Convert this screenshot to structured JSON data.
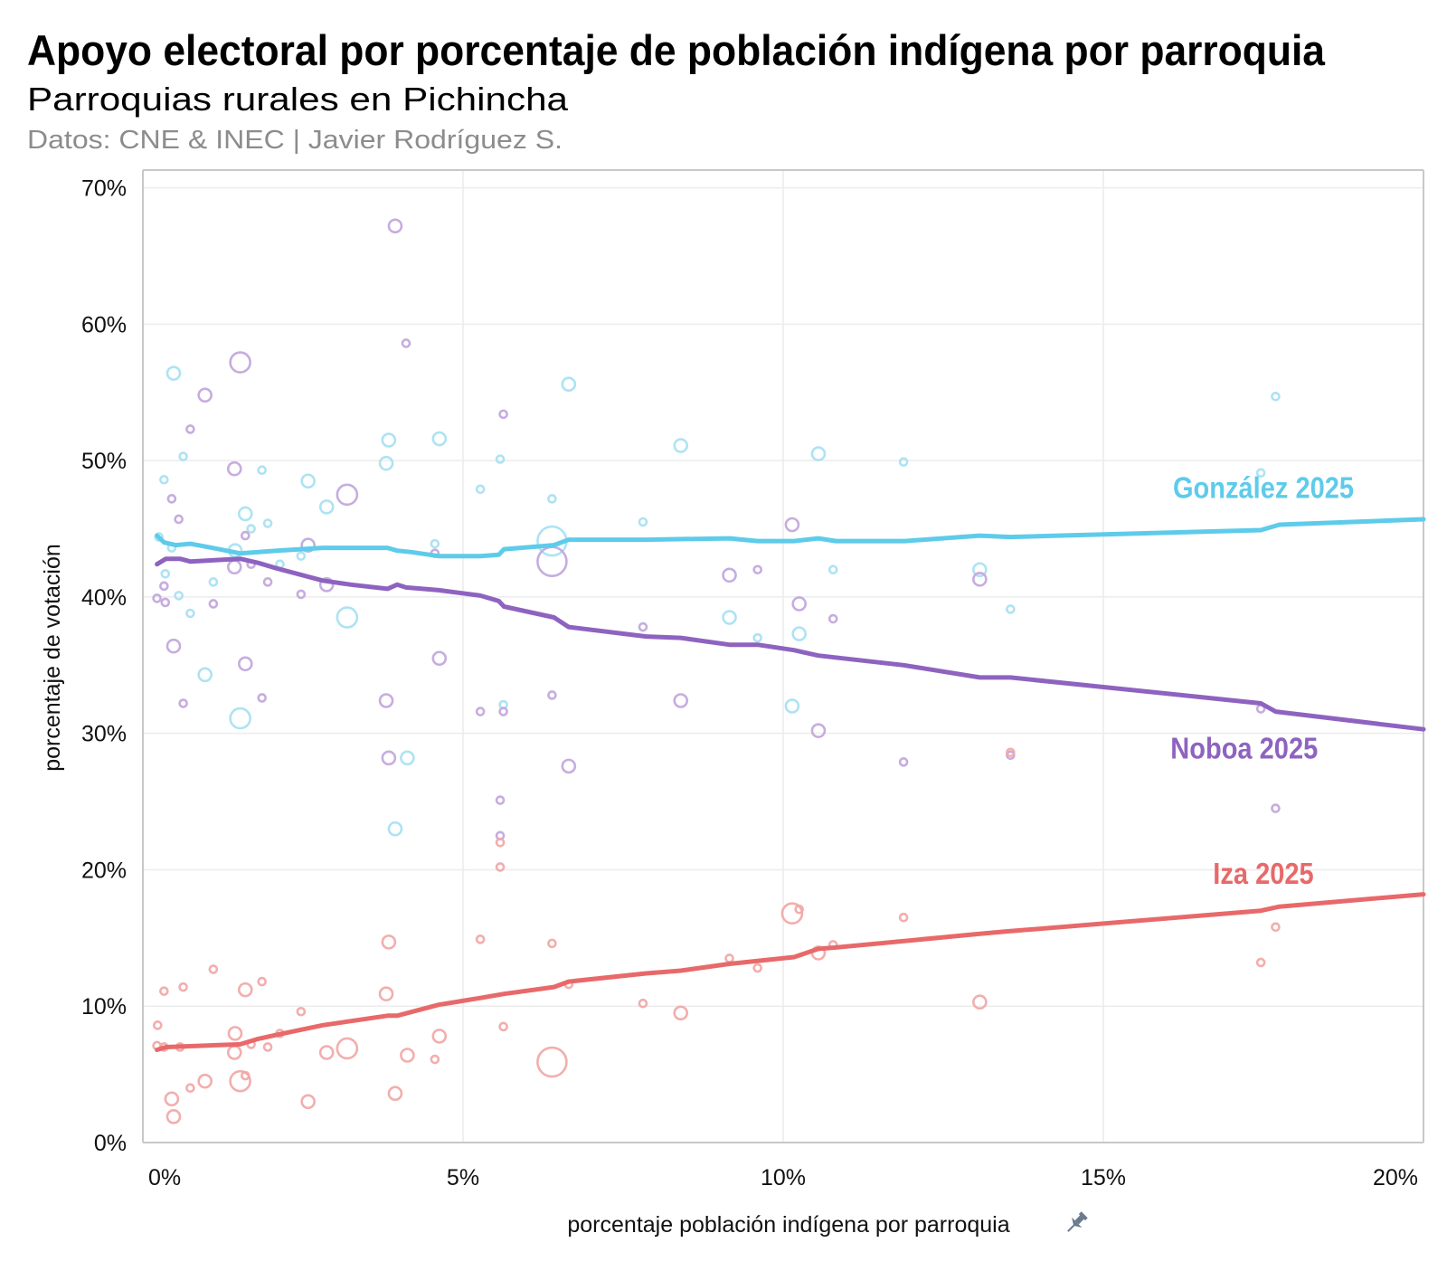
{
  "chart_data": {
    "type": "scatter",
    "title": "Apoyo electoral por porcentaje de población indígena por parroquia",
    "subtitle": "Parroquias rurales en Pichincha",
    "source": "Datos: CNE & INEC | Javier Rodríguez S.",
    "xlabel": "porcentaje población indígena por parroquia",
    "ylabel": "porcentaje de votación",
    "xlim": [
      0,
      20
    ],
    "ylim": [
      0,
      71.3
    ],
    "x_ticks": [
      {
        "v": 0,
        "label": "0%"
      },
      {
        "v": 5,
        "label": "5%"
      },
      {
        "v": 10,
        "label": "10%"
      },
      {
        "v": 15,
        "label": "15%"
      },
      {
        "v": 20,
        "label": "20%"
      }
    ],
    "y_ticks": [
      {
        "v": 0,
        "label": "0%"
      },
      {
        "v": 10,
        "label": "10%"
      },
      {
        "v": 20,
        "label": "20%"
      },
      {
        "v": 30,
        "label": "30%"
      },
      {
        "v": 40,
        "label": "40%"
      },
      {
        "v": 50,
        "label": "50%"
      },
      {
        "v": 60,
        "label": "60%"
      },
      {
        "v": 70,
        "label": "70%"
      }
    ],
    "grid": true,
    "point_size_note": "circle size = relative parish size (1-4)",
    "series": [
      {
        "name": "González 2025",
        "color": "#5ecbea",
        "point_color": "#a9e1f2",
        "label_at": [
          17.5,
          48.0
        ],
        "points": [
          [
            0.25,
            44.4,
            1
          ],
          [
            0.33,
            48.6,
            1
          ],
          [
            0.48,
            56.4,
            2
          ],
          [
            0.45,
            43.6,
            1
          ],
          [
            0.35,
            41.7,
            1
          ],
          [
            0.56,
            40.1,
            1
          ],
          [
            0.63,
            50.3,
            1
          ],
          [
            0.74,
            38.8,
            1
          ],
          [
            0.97,
            34.3,
            2
          ],
          [
            1.1,
            41.1,
            1
          ],
          [
            1.44,
            43.4,
            2
          ],
          [
            1.52,
            31.1,
            3
          ],
          [
            1.6,
            46.1,
            2
          ],
          [
            1.69,
            45.0,
            1
          ],
          [
            1.86,
            49.3,
            1
          ],
          [
            1.95,
            45.4,
            1
          ],
          [
            2.14,
            42.4,
            1
          ],
          [
            2.58,
            48.5,
            2
          ],
          [
            2.47,
            43.0,
            1
          ],
          [
            2.87,
            46.6,
            2
          ],
          [
            3.19,
            38.5,
            3
          ],
          [
            3.8,
            49.8,
            2
          ],
          [
            3.84,
            51.5,
            2
          ],
          [
            3.94,
            23.0,
            2
          ],
          [
            4.13,
            28.2,
            2
          ],
          [
            4.56,
            43.9,
            1
          ],
          [
            4.63,
            51.6,
            2
          ],
          [
            5.27,
            47.9,
            1
          ],
          [
            5.58,
            50.1,
            1
          ],
          [
            5.63,
            32.1,
            1
          ],
          [
            6.39,
            44.1,
            4
          ],
          [
            6.39,
            47.2,
            1
          ],
          [
            6.65,
            55.6,
            2
          ],
          [
            7.81,
            45.5,
            1
          ],
          [
            8.4,
            51.1,
            2
          ],
          [
            9.16,
            38.5,
            2
          ],
          [
            9.6,
            37.0,
            1
          ],
          [
            10.14,
            32.0,
            2
          ],
          [
            10.25,
            37.3,
            2
          ],
          [
            10.55,
            50.5,
            2
          ],
          [
            10.78,
            42.0,
            1
          ],
          [
            11.88,
            49.9,
            1
          ],
          [
            13.07,
            42.0,
            2
          ],
          [
            13.55,
            39.1,
            1
          ],
          [
            17.46,
            49.1,
            1
          ],
          [
            17.69,
            54.7,
            1
          ]
        ],
        "trend": [
          [
            0.22,
            44.5
          ],
          [
            0.33,
            44.0
          ],
          [
            0.51,
            43.8
          ],
          [
            0.74,
            43.9
          ],
          [
            1.08,
            43.6
          ],
          [
            1.52,
            43.2
          ],
          [
            2.09,
            43.4
          ],
          [
            2.81,
            43.6
          ],
          [
            3.25,
            43.6
          ],
          [
            3.82,
            43.6
          ],
          [
            3.97,
            43.4
          ],
          [
            4.18,
            43.3
          ],
          [
            4.62,
            43.0
          ],
          [
            5.27,
            43.0
          ],
          [
            5.56,
            43.1
          ],
          [
            5.64,
            43.5
          ],
          [
            6.42,
            43.8
          ],
          [
            6.65,
            44.2
          ],
          [
            7.86,
            44.2
          ],
          [
            9.16,
            44.3
          ],
          [
            9.6,
            44.1
          ],
          [
            10.17,
            44.1
          ],
          [
            10.55,
            44.3
          ],
          [
            10.82,
            44.1
          ],
          [
            11.9,
            44.1
          ],
          [
            13.07,
            44.5
          ],
          [
            13.55,
            44.4
          ],
          [
            17.46,
            44.9
          ],
          [
            17.75,
            45.3
          ],
          [
            20.0,
            45.7
          ]
        ]
      },
      {
        "name": "Noboa 2025",
        "color": "#8e63c0",
        "point_color": "#c3a9dd",
        "label_at": [
          17.2,
          28.9
        ],
        "points": [
          [
            3.94,
            67.2,
            2
          ],
          [
            4.11,
            58.6,
            1
          ],
          [
            1.52,
            57.2,
            3
          ],
          [
            0.97,
            54.8,
            2
          ],
          [
            0.74,
            52.3,
            1
          ],
          [
            5.63,
            53.4,
            1
          ],
          [
            1.43,
            49.4,
            2
          ],
          [
            3.19,
            47.5,
            3
          ],
          [
            0.45,
            47.2,
            1
          ],
          [
            0.56,
            45.7,
            1
          ],
          [
            1.6,
            44.5,
            1
          ],
          [
            2.58,
            43.8,
            2
          ],
          [
            6.39,
            42.6,
            4
          ],
          [
            4.56,
            43.2,
            1
          ],
          [
            1.43,
            42.2,
            2
          ],
          [
            1.69,
            42.4,
            1
          ],
          [
            1.95,
            41.1,
            1
          ],
          [
            2.87,
            40.9,
            2
          ],
          [
            0.33,
            40.8,
            1
          ],
          [
            2.47,
            40.2,
            1
          ],
          [
            0.22,
            39.9,
            1
          ],
          [
            0.35,
            39.6,
            1
          ],
          [
            1.1,
            39.5,
            1
          ],
          [
            0.48,
            36.4,
            2
          ],
          [
            4.63,
            35.5,
            2
          ],
          [
            1.6,
            35.1,
            2
          ],
          [
            0.63,
            32.2,
            1
          ],
          [
            1.86,
            32.6,
            1
          ],
          [
            3.8,
            32.4,
            2
          ],
          [
            8.4,
            32.4,
            2
          ],
          [
            6.39,
            32.8,
            1
          ],
          [
            5.63,
            31.6,
            1
          ],
          [
            3.84,
            28.2,
            2
          ],
          [
            6.65,
            27.6,
            2
          ],
          [
            10.14,
            45.3,
            2
          ],
          [
            10.25,
            39.5,
            2
          ],
          [
            9.16,
            41.6,
            2
          ],
          [
            9.6,
            42.0,
            1
          ],
          [
            7.81,
            37.8,
            1
          ],
          [
            10.78,
            38.4,
            1
          ],
          [
            13.07,
            41.3,
            2
          ],
          [
            10.55,
            30.2,
            2
          ],
          [
            11.88,
            27.9,
            1
          ],
          [
            13.55,
            28.4,
            1
          ],
          [
            17.46,
            31.8,
            1
          ],
          [
            17.69,
            24.5,
            1
          ],
          [
            5.58,
            25.1,
            1
          ],
          [
            5.58,
            22.5,
            1
          ],
          [
            5.27,
            31.6,
            1
          ]
        ],
        "trend": [
          [
            0.22,
            42.4
          ],
          [
            0.36,
            42.8
          ],
          [
            0.58,
            42.8
          ],
          [
            0.74,
            42.6
          ],
          [
            1.52,
            42.8
          ],
          [
            1.8,
            42.5
          ],
          [
            2.09,
            42.1
          ],
          [
            2.81,
            41.2
          ],
          [
            3.25,
            40.9
          ],
          [
            3.82,
            40.6
          ],
          [
            3.97,
            40.9
          ],
          [
            4.11,
            40.7
          ],
          [
            4.62,
            40.5
          ],
          [
            5.27,
            40.1
          ],
          [
            5.56,
            39.7
          ],
          [
            5.64,
            39.3
          ],
          [
            6.42,
            38.5
          ],
          [
            6.65,
            37.8
          ],
          [
            7.86,
            37.1
          ],
          [
            8.4,
            37.0
          ],
          [
            9.16,
            36.5
          ],
          [
            9.6,
            36.5
          ],
          [
            10.17,
            36.1
          ],
          [
            10.55,
            35.7
          ],
          [
            11.88,
            35.0
          ],
          [
            13.07,
            34.1
          ],
          [
            13.55,
            34.1
          ],
          [
            17.46,
            32.2
          ],
          [
            17.69,
            31.6
          ],
          [
            20.0,
            30.3
          ]
        ]
      },
      {
        "name": "Iza 2025",
        "color": "#e8696a",
        "point_color": "#f1aaa9",
        "label_at": [
          17.5,
          19.7
        ],
        "points": [
          [
            0.23,
            8.6,
            1
          ],
          [
            0.33,
            11.1,
            1
          ],
          [
            0.63,
            11.4,
            1
          ],
          [
            1.1,
            12.7,
            1
          ],
          [
            1.86,
            11.8,
            1
          ],
          [
            1.6,
            11.2,
            2
          ],
          [
            1.44,
            8.0,
            2
          ],
          [
            0.22,
            7.1,
            1
          ],
          [
            0.33,
            7.0,
            1
          ],
          [
            0.58,
            7.0,
            1
          ],
          [
            1.43,
            6.6,
            2
          ],
          [
            1.69,
            7.2,
            1
          ],
          [
            1.95,
            7.0,
            1
          ],
          [
            2.14,
            8.0,
            1
          ],
          [
            2.47,
            9.6,
            1
          ],
          [
            0.97,
            4.5,
            2
          ],
          [
            0.74,
            4.0,
            1
          ],
          [
            1.52,
            4.5,
            3
          ],
          [
            1.6,
            4.9,
            1
          ],
          [
            0.45,
            3.2,
            2
          ],
          [
            0.48,
            1.9,
            2
          ],
          [
            2.58,
            3.0,
            2
          ],
          [
            2.87,
            6.6,
            2
          ],
          [
            3.19,
            6.9,
            3
          ],
          [
            3.8,
            10.9,
            2
          ],
          [
            3.84,
            14.7,
            2
          ],
          [
            3.94,
            3.6,
            2
          ],
          [
            4.13,
            6.4,
            2
          ],
          [
            4.56,
            6.1,
            1
          ],
          [
            4.63,
            7.8,
            2
          ],
          [
            5.27,
            14.9,
            1
          ],
          [
            5.63,
            8.5,
            1
          ],
          [
            5.58,
            20.2,
            1
          ],
          [
            5.58,
            22.0,
            1
          ],
          [
            6.39,
            14.6,
            1
          ],
          [
            6.39,
            5.9,
            4
          ],
          [
            6.65,
            11.6,
            1
          ],
          [
            7.81,
            10.2,
            1
          ],
          [
            8.4,
            9.5,
            2
          ],
          [
            9.16,
            13.5,
            1
          ],
          [
            9.6,
            12.8,
            1
          ],
          [
            10.14,
            16.8,
            3
          ],
          [
            10.25,
            17.1,
            1
          ],
          [
            10.55,
            13.9,
            2
          ],
          [
            10.78,
            14.5,
            1
          ],
          [
            11.88,
            16.5,
            1
          ],
          [
            13.07,
            10.3,
            2
          ],
          [
            13.55,
            28.6,
            1
          ],
          [
            17.46,
            13.2,
            1
          ],
          [
            17.69,
            15.8,
            1
          ]
        ],
        "trend": [
          [
            0.22,
            6.8
          ],
          [
            0.36,
            7.0
          ],
          [
            1.52,
            7.2
          ],
          [
            1.8,
            7.6
          ],
          [
            2.09,
            7.9
          ],
          [
            2.81,
            8.6
          ],
          [
            3.82,
            9.3
          ],
          [
            3.97,
            9.3
          ],
          [
            4.62,
            10.1
          ],
          [
            5.27,
            10.6
          ],
          [
            5.64,
            10.9
          ],
          [
            6.42,
            11.4
          ],
          [
            6.65,
            11.8
          ],
          [
            7.86,
            12.4
          ],
          [
            8.4,
            12.6
          ],
          [
            9.16,
            13.1
          ],
          [
            10.17,
            13.6
          ],
          [
            10.55,
            14.2
          ],
          [
            10.82,
            14.3
          ],
          [
            13.07,
            15.3
          ],
          [
            13.55,
            15.5
          ],
          [
            17.46,
            17.0
          ],
          [
            17.75,
            17.3
          ],
          [
            20.0,
            18.2
          ]
        ]
      }
    ]
  },
  "icons": {
    "xlabel_icon": "pushpin-icon"
  }
}
